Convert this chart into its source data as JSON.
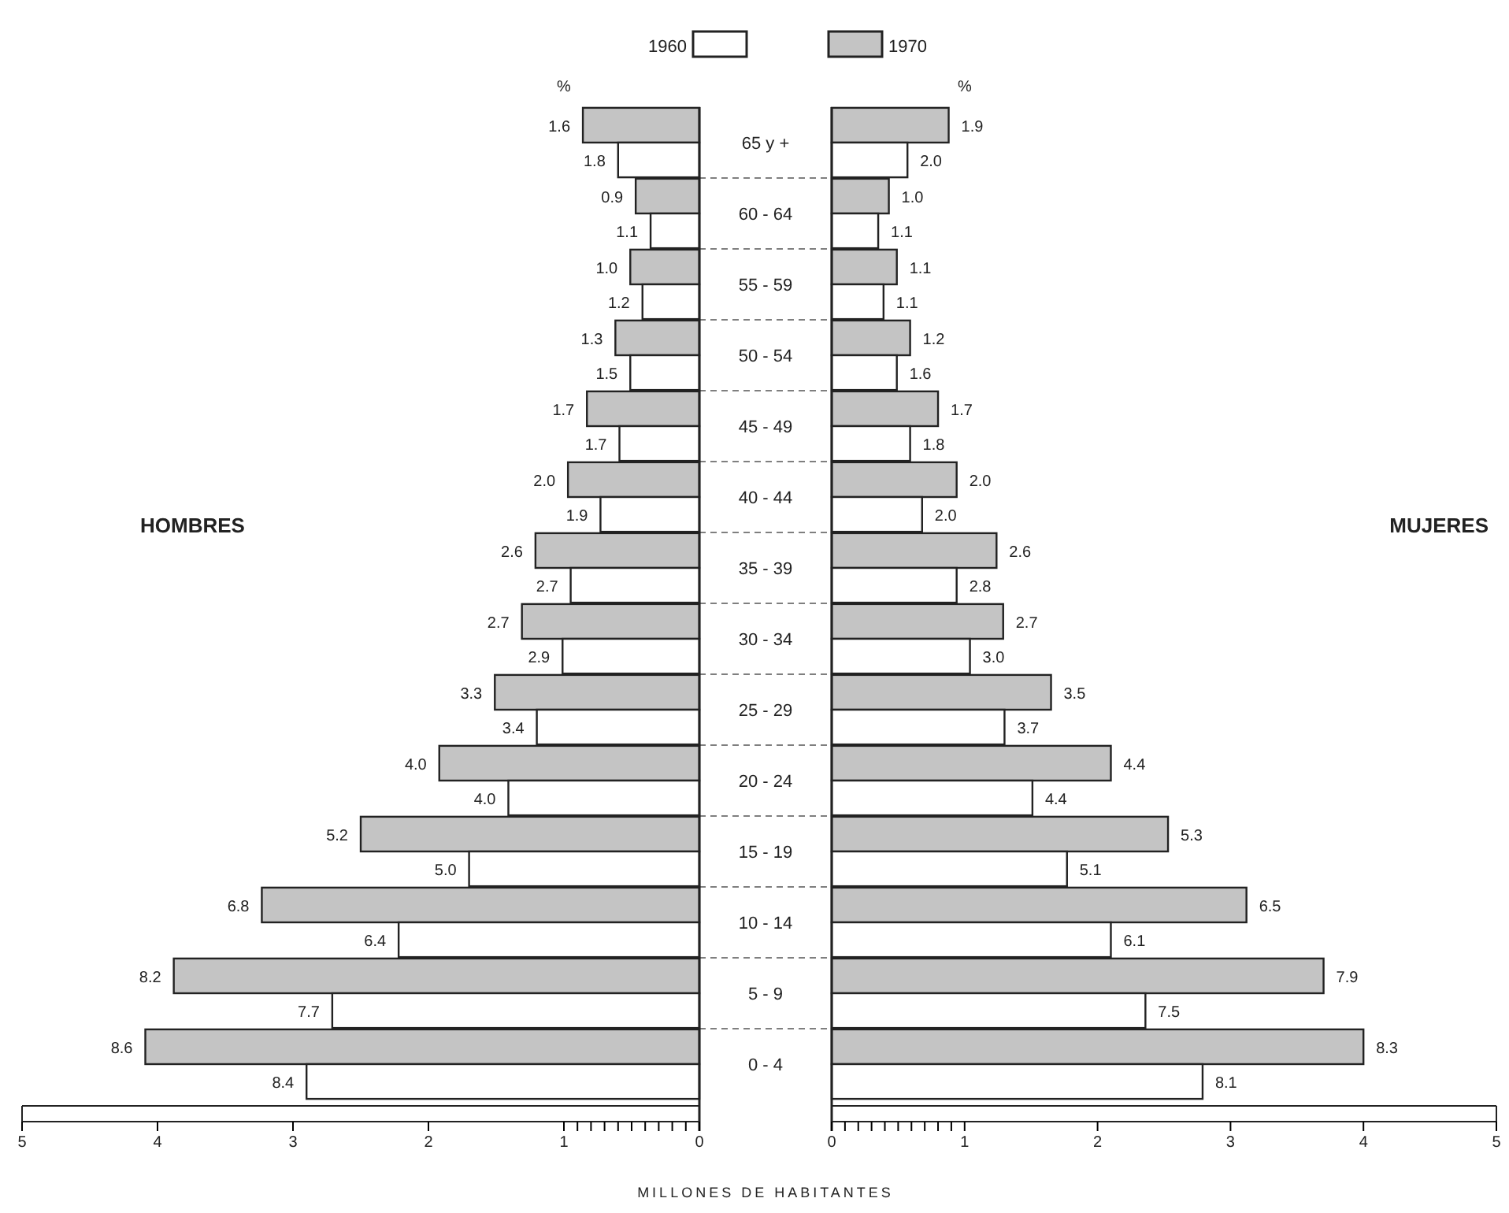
{
  "chart_data": [
    {
      "type": "bar",
      "orientation": "horizontal",
      "title": "HOMBRES",
      "xlabel": "MILLONES DE HABITANTES",
      "legend": "top",
      "categories": [
        "65 y +",
        "60 - 64",
        "55 - 59",
        "50 - 54",
        "45 - 49",
        "40 - 44",
        "35 - 39",
        "30 - 34",
        "25 - 29",
        "20 - 24",
        "15 - 19",
        "10 - 14",
        "5 - 9",
        "0 - 4"
      ],
      "xlim": [
        5,
        0
      ],
      "xticks": [
        5,
        4,
        3,
        2,
        1,
        {
          "value": 0.9,
          "label": null
        },
        {
          "value": 0.8,
          "label": null
        },
        {
          "value": 0.7,
          "label": null
        },
        {
          "value": 0.6,
          "label": null
        },
        {
          "value": 0.5,
          "label": null
        },
        {
          "value": 0.4,
          "label": null
        },
        {
          "value": 0.3,
          "label": null
        },
        {
          "value": 0.2,
          "label": null
        },
        {
          "value": 0.1,
          "label": null
        },
        0
      ],
      "series": [
        {
          "name": "1970",
          "color": "#c4c4c4",
          "values": [
            0.86,
            0.47,
            0.51,
            0.62,
            0.83,
            0.97,
            1.21,
            1.31,
            1.51,
            1.92,
            2.5,
            3.23,
            3.88,
            4.09
          ]
        },
        {
          "name": "1960",
          "color": "#ffffff",
          "values": [
            0.6,
            0.36,
            0.42,
            0.51,
            0.59,
            0.73,
            0.95,
            1.01,
            1.2,
            1.41,
            1.7,
            2.22,
            2.71,
            2.9
          ]
        }
      ],
      "annotations": [
        "%",
        {
          "text": "1.8",
          "x": 0.6,
          "y": "65 y +"
        },
        {
          "text": "1.1",
          "x": 0.36,
          "y": "60 - 64"
        },
        {
          "text": "1.2",
          "x": 0.42,
          "y": "55 - 59"
        },
        {
          "text": "1.5",
          "x": 0.51,
          "y": "50 - 54"
        },
        {
          "text": "1.7",
          "x": 0.59,
          "y": "45 - 49"
        },
        {
          "text": "1.9",
          "x": 0.73,
          "y": "40 - 44"
        },
        {
          "text": "2.7",
          "x": 0.95,
          "y": "35 - 39"
        },
        {
          "text": "2.9",
          "x": 1.01,
          "y": "30 - 34"
        },
        {
          "text": "3.4",
          "x": 1.2,
          "y": "25 - 29"
        },
        {
          "text": "4.0",
          "x": 1.41,
          "y": "20 - 24"
        },
        {
          "text": "5.0",
          "x": 1.7,
          "y": "15 - 19"
        },
        {
          "text": "6.4",
          "x": 2.22,
          "y": "10 - 14"
        },
        {
          "text": "7.7",
          "x": 2.71,
          "y": "5 - 9"
        },
        {
          "text": "8.4",
          "x": 2.9,
          "y": "0 - 4"
        },
        {
          "text": "1.6",
          "x": 0.86,
          "y": "65 y +"
        },
        {
          "text": "0.9",
          "x": 0.47,
          "y": "60 - 64"
        },
        {
          "text": "1.0",
          "x": 0.51,
          "y": "55 - 59"
        },
        {
          "text": "1.3",
          "x": 0.62,
          "y": "50 - 54"
        },
        {
          "text": "1.7",
          "x": 0.83,
          "y": "45 - 49"
        },
        {
          "text": "2.0",
          "x": 0.97,
          "y": "40 - 44"
        },
        {
          "text": "2.6",
          "x": 1.21,
          "y": "35 - 39"
        },
        {
          "text": "2.7",
          "x": 1.31,
          "y": "30 - 34"
        },
        {
          "text": "3.3",
          "x": 1.51,
          "y": "25 - 29"
        },
        {
          "text": "4.0",
          "x": 1.92,
          "y": "20 - 24"
        },
        {
          "text": "5.2",
          "x": 2.5,
          "y": "15 - 19"
        },
        {
          "text": "6.8",
          "x": 3.23,
          "y": "10 - 14"
        },
        {
          "text": "8.2",
          "x": 3.88,
          "y": "5 - 9"
        },
        {
          "text": "8.6",
          "x": 4.09,
          "y": "0 - 4"
        }
      ]
    },
    {
      "type": "bar",
      "orientation": "horizontal",
      "title": "MUJERES",
      "tick_labels": "x",
      "categories": [
        "65 y +",
        "60 - 64",
        "55 - 59",
        "50 - 54",
        "45 - 49",
        "40 - 44",
        "35 - 39",
        "30 - 34",
        "25 - 29",
        "20 - 24",
        "15 - 19",
        "10 - 14",
        "5 - 9",
        "0 - 4"
      ],
      "xlim": [
        0,
        5
      ],
      "xticks": [
        0,
        {
          "value": 0.1,
          "label": null
        },
        {
          "value": 0.2,
          "label": null
        },
        {
          "value": 0.3,
          "label": null
        },
        {
          "value": 0.4,
          "label": null
        },
        {
          "value": 0.5,
          "label": null
        },
        {
          "value": 0.6,
          "label": null
        },
        {
          "value": 0.7,
          "label": null
        },
        {
          "value": 0.8,
          "label": null
        },
        {
          "value": 0.9,
          "label": null
        },
        1,
        2,
        3,
        4,
        5
      ],
      "series": [
        {
          "color": "#c4c4c4",
          "values": [
            0.88,
            0.43,
            0.49,
            0.59,
            0.8,
            0.94,
            1.24,
            1.29,
            1.65,
            2.1,
            2.53,
            3.12,
            3.7,
            4.0
          ]
        },
        {
          "color": "#ffffff",
          "values": [
            0.57,
            0.35,
            0.39,
            0.49,
            0.59,
            0.68,
            0.94,
            1.04,
            1.3,
            1.51,
            1.77,
            2.1,
            2.36,
            2.79
          ]
        }
      ],
      "annotations": [
        "%",
        {
          "text": "2.0",
          "x": 0.57,
          "y": "65 y +"
        },
        {
          "text": "1.1",
          "x": 0.35,
          "y": "60 - 64"
        },
        {
          "text": "1.1",
          "x": 0.39,
          "y": "55 - 59"
        },
        {
          "text": "1.6",
          "x": 0.49,
          "y": "50 - 54"
        },
        {
          "text": "1.8",
          "x": 0.59,
          "y": "45 - 49"
        },
        {
          "text": "2.0",
          "x": 0.68,
          "y": "40 - 44"
        },
        {
          "text": "2.8",
          "x": 0.94,
          "y": "35 - 39"
        },
        {
          "text": "3.0",
          "x": 1.04,
          "y": "30 - 34"
        },
        {
          "text": "3.7",
          "x": 1.3,
          "y": "25 - 29"
        },
        {
          "text": "4.4",
          "x": 1.51,
          "y": "20 - 24"
        },
        {
          "text": "5.1",
          "x": 1.77,
          "y": "15 - 19"
        },
        {
          "text": "6.1",
          "x": 2.1,
          "y": "10 - 14"
        },
        {
          "text": "7.5",
          "x": 2.36,
          "y": "5 - 9"
        },
        {
          "text": "8.1",
          "x": 2.79,
          "y": "0 - 4"
        },
        {
          "text": "1.9",
          "x": 0.88,
          "y": "65 y +"
        },
        {
          "text": "1.0",
          "x": 0.43,
          "y": "60 - 64"
        },
        {
          "text": "1.1",
          "x": 0.49,
          "y": "55 - 59"
        },
        {
          "text": "1.2",
          "x": 0.59,
          "y": "50 - 54"
        },
        {
          "text": "1.7",
          "x": 0.8,
          "y": "45 - 49"
        },
        {
          "text": "2.0",
          "x": 0.94,
          "y": "40 - 44"
        },
        {
          "text": "2.6",
          "x": 1.24,
          "y": "35 - 39"
        },
        {
          "text": "2.7",
          "x": 1.29,
          "y": "30 - 34"
        },
        {
          "text": "3.5",
          "x": 1.65,
          "y": "25 - 29"
        },
        {
          "text": "4.4",
          "x": 2.1,
          "y": "20 - 24"
        },
        {
          "text": "5.3",
          "x": 2.53,
          "y": "15 - 19"
        },
        {
          "text": "6.5",
          "x": 3.12,
          "y": "10 - 14"
        },
        {
          "text": "7.9",
          "x": 3.7,
          "y": "5 - 9"
        },
        {
          "text": "8.3",
          "x": 4.0,
          "y": "0 - 4"
        }
      ]
    }
  ]
}
